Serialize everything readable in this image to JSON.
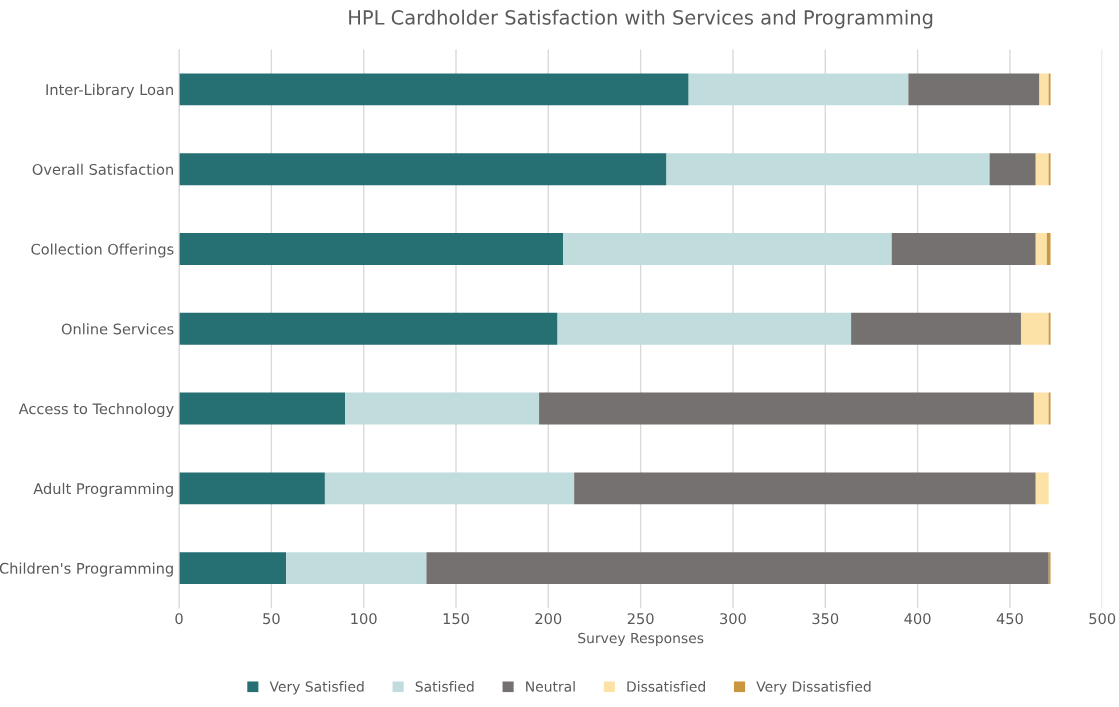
{
  "chart_data": {
    "type": "bar",
    "orientation": "horizontal",
    "stacked": true,
    "title": "HPL Cardholder Satisfaction with Services and Programming",
    "xlabel": "Survey Responses",
    "categories": [
      "Inter-Library Loan",
      "Overall Satisfaction",
      "Collection Offerings",
      "Online Services",
      "Access to Technology",
      "Adult Programming",
      "Children's Programming"
    ],
    "series": [
      {
        "name": "Very Satisfied",
        "color": "#266f73",
        "values": [
          276,
          264,
          208,
          205,
          90,
          79,
          58
        ]
      },
      {
        "name": "Satisfied",
        "color": "#c0dcdc",
        "values": [
          119,
          175,
          178,
          159,
          105,
          135,
          76
        ]
      },
      {
        "name": "Neutral",
        "color": "#757170",
        "values": [
          71,
          25,
          78,
          92,
          268,
          250,
          337
        ]
      },
      {
        "name": "Dissatisfied",
        "color": "#fde2a7",
        "values": [
          5,
          7,
          6,
          15,
          8,
          7,
          0
        ]
      },
      {
        "name": "Very Dissatisfied",
        "color": "#c9973f",
        "values": [
          1,
          1,
          2,
          1,
          1,
          0,
          1
        ]
      }
    ],
    "xlim": [
      0,
      500
    ],
    "xticks": [
      0,
      50,
      100,
      150,
      200,
      250,
      300,
      350,
      400,
      450,
      500
    ],
    "grid": "x",
    "legend": "bottom"
  }
}
